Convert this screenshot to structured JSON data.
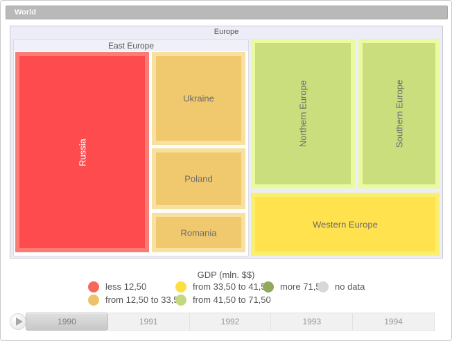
{
  "breadcrumb": {
    "label": "World"
  },
  "treemap": {
    "root_label": "Europe",
    "east_group_label": "East Europe",
    "blocks": {
      "russia": {
        "label": "Russia"
      },
      "ukraine": {
        "label": "Ukraine"
      },
      "poland": {
        "label": "Poland"
      },
      "romania": {
        "label": "Romania"
      },
      "northern_europe": {
        "label": "Northern Europe"
      },
      "southern_europe": {
        "label": "Southern Europe"
      },
      "western_europe": {
        "label": "Western Europe"
      }
    }
  },
  "legend": {
    "title": "GDP (mln. $$)",
    "items": [
      {
        "label": "less 12,50",
        "color": "#f5685c"
      },
      {
        "label": "from 12,50 to 33,50",
        "color": "#edc269"
      },
      {
        "label": "from 33,50 to 41,50",
        "color": "#fbdf45"
      },
      {
        "label": "from 41,50 to 71,50",
        "color": "#c3d87f"
      },
      {
        "label": "more 71,50",
        "color": "#93a85c"
      },
      {
        "label": "no data",
        "color": "#d8d8d8"
      }
    ]
  },
  "timeline": {
    "years": [
      "1990",
      "1991",
      "1992",
      "1993",
      "1994"
    ],
    "selected_year": "1990"
  },
  "chart_data": {
    "type": "treemap",
    "title": "GDP (mln. $$)",
    "root": "Europe",
    "legend_bins": [
      {
        "label": "less 12,50",
        "color": "#f5685c"
      },
      {
        "label": "from 12,50 to 33,50",
        "color": "#edc269"
      },
      {
        "label": "from 33,50 to 41,50",
        "color": "#fbdf45"
      },
      {
        "label": "from 41,50 to 71,50",
        "color": "#c3d87f"
      },
      {
        "label": "more 71,50",
        "color": "#93a85c"
      },
      {
        "label": "no data",
        "color": "#d8d8d8"
      }
    ],
    "nodes": [
      {
        "name": "Russia",
        "group": "East Europe",
        "bin": "less 12,50",
        "fill": "#fe4b4e",
        "approx_area_pct": 32
      },
      {
        "name": "Ukraine",
        "group": "East Europe",
        "bin": "from 12,50 to 33,50",
        "fill": "#f0c96f",
        "approx_area_pct": 10
      },
      {
        "name": "Poland",
        "group": "East Europe",
        "bin": "from 12,50 to 33,50",
        "fill": "#f0c96f",
        "approx_area_pct": 7
      },
      {
        "name": "Romania",
        "group": "East Europe",
        "bin": "from 12,50 to 33,50",
        "fill": "#f0c96f",
        "approx_area_pct": 4
      },
      {
        "name": "Northern Europe",
        "group": "Europe",
        "bin": "from 41,50 to 71,50",
        "fill": "#cade7e",
        "approx_area_pct": 18
      },
      {
        "name": "Southern Europe",
        "group": "Europe",
        "bin": "from 41,50 to 71,50",
        "fill": "#cade7e",
        "approx_area_pct": 15
      },
      {
        "name": "Western Europe",
        "group": "Europe",
        "bin": "from 33,50 to 41,50",
        "fill": "#ffe24d",
        "approx_area_pct": 14
      }
    ],
    "year_shown": "1990"
  }
}
